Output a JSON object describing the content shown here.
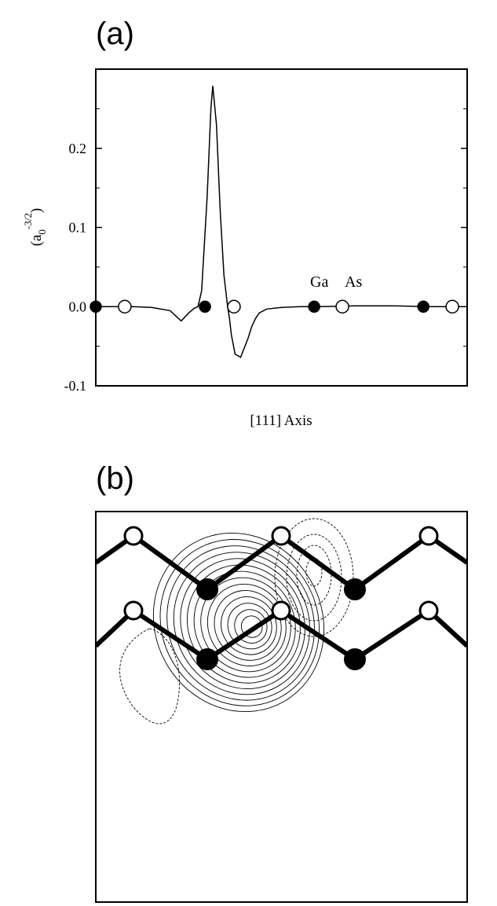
{
  "panel_a": {
    "label": "(a)",
    "ylabel_base": "(a",
    "ylabel_sub": "0",
    "ylabel_sup": "-3/2",
    "ylabel_close": ")",
    "xlabel": "[111] Axis",
    "atom_labels": [
      "Ga",
      "As"
    ]
  },
  "panel_b": {
    "label": "(b)"
  },
  "chart_data": [
    {
      "type": "line",
      "title": "",
      "xlabel": "[111] Axis",
      "ylabel": "(a0^-3/2)",
      "ylim": [
        -0.1,
        0.3
      ],
      "yticks": [
        -0.1,
        0.0,
        0.1,
        0.2
      ],
      "ytick_labels": [
        "-0.1",
        "0.0",
        "0.1",
        "0.2"
      ],
      "xlim": [
        0,
        1
      ],
      "grid": false,
      "series": [
        {
          "x": [
            0.0,
            0.05,
            0.1,
            0.15,
            0.2,
            0.23,
            0.25,
            0.265,
            0.275,
            0.285,
            0.3,
            0.31,
            0.315,
            0.325,
            0.335,
            0.345,
            0.355,
            0.36,
            0.365,
            0.375,
            0.39,
            0.41,
            0.42,
            0.43,
            0.44,
            0.46,
            0.5,
            0.55,
            0.6,
            0.7,
            0.8,
            0.9,
            1.0
          ],
          "y": [
            0.0,
            0.0,
            0.0,
            -0.001,
            -0.005,
            -0.018,
            -0.008,
            -0.002,
            0.0,
            0.02,
            0.14,
            0.25,
            0.279,
            0.23,
            0.12,
            0.04,
            0.0,
            -0.015,
            -0.035,
            -0.06,
            -0.064,
            -0.04,
            -0.025,
            -0.015,
            -0.008,
            -0.003,
            -0.001,
            0.0,
            0.0,
            0.001,
            0.001,
            0.0,
            0.0
          ]
        }
      ],
      "atoms": [
        {
          "x": 0.0,
          "species": "Ga"
        },
        {
          "x": 0.078,
          "species": "As"
        },
        {
          "x": 0.294,
          "species": "Ga"
        },
        {
          "x": 0.372,
          "species": "As"
        },
        {
          "x": 0.588,
          "species": "Ga"
        },
        {
          "x": 0.664,
          "species": "As"
        },
        {
          "x": 0.882,
          "species": "Ga"
        },
        {
          "x": 0.96,
          "species": "As"
        }
      ]
    }
  ],
  "colors": {
    "line": "#000000",
    "ga_fill": "#000000",
    "as_fill": "#ffffff"
  }
}
